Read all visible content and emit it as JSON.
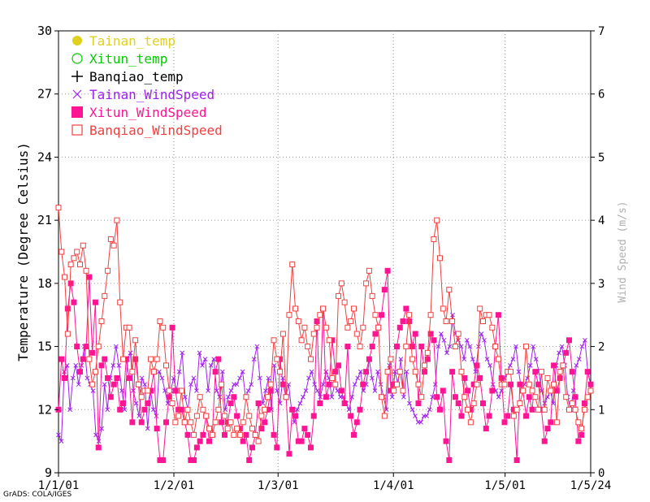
{
  "chart_data": {
    "type": "line",
    "ylabel_left": "Temperature (Degree Celsius)",
    "ylabel_right": "Wind Speed (m/s)",
    "ylim_left": [
      9,
      30
    ],
    "ylim_right": [
      0,
      7
    ],
    "yticks_left": [
      "9",
      "12",
      "15",
      "18",
      "21",
      "24",
      "27",
      "30"
    ],
    "yticks_right": [
      "0",
      "1",
      "2",
      "3",
      "4",
      "5",
      "6",
      "7"
    ],
    "xticks": [
      "1/1/01",
      "1/2/01",
      "1/3/01",
      "1/4/01",
      "1/5/01",
      "1/5/24"
    ],
    "xrange": [
      "2001-01-01",
      "2001-05-24"
    ],
    "legend_position": "top-left",
    "series": [
      {
        "name": "Tainan_temp",
        "color": "#e0d020",
        "marker": "filled-circle",
        "axis": "left",
        "values": []
      },
      {
        "name": "Xitun_temp",
        "color": "#00cc00",
        "marker": "open-circle",
        "axis": "left",
        "values": []
      },
      {
        "name": "Banqiao_temp",
        "color": "#000000",
        "marker": "plus",
        "axis": "left",
        "values": []
      },
      {
        "name": "Tainan_WindSpeed",
        "color": "#a020f0",
        "marker": "cross",
        "axis": "right",
        "values": [
          0.6,
          0.5,
          1.6,
          1.7,
          1.0,
          1.5,
          1.7,
          1.4,
          1.7,
          2.0,
          1.5,
          1.4,
          1.3,
          0.6,
          0.5,
          0.7,
          1.4,
          1.0,
          1.5,
          1.7,
          2.0,
          1.7,
          1.3,
          1.0,
          1.8,
          1.9,
          1.3,
          1.1,
          0.9,
          1.5,
          1.4,
          0.7,
          1.3,
          1.0,
          0.9,
          1.6,
          1.5,
          1.3,
          1.1,
          1.3,
          1.5,
          1.3,
          1.6,
          1.9,
          1.2,
          1.0,
          1.4,
          1.5,
          1.3,
          1.9,
          1.7,
          1.8,
          1.3,
          1.7,
          1.8,
          1.3,
          1.2,
          1.6,
          1.0,
          1.2,
          1.3,
          1.4,
          1.4,
          1.5,
          1.6,
          1.2,
          1.3,
          1.4,
          1.8,
          2.0,
          1.5,
          1.1,
          1.3,
          1.5,
          1.0,
          1.7,
          1.3,
          1.1,
          1.5,
          1.2,
          1.4,
          1.0,
          0.8,
          1.0,
          1.1,
          1.2,
          1.3,
          1.5,
          1.6,
          1.4,
          1.3,
          1.2,
          1.4,
          1.6,
          1.5,
          1.2,
          1.4,
          1.3,
          1.2,
          1.2,
          1.1,
          1.0,
          1.2,
          1.4,
          1.5,
          1.6,
          1.3,
          1.4,
          1.8,
          1.5,
          1.3,
          1.6,
          1.4,
          1.2,
          1.0,
          1.7,
          1.2,
          1.6,
          1.4,
          1.8,
          1.2,
          1.6,
          1.1,
          1.0,
          0.9,
          0.8,
          0.8,
          0.9,
          0.9,
          1.0,
          1.2,
          1.4,
          2.0,
          2.2,
          2.1,
          1.9,
          2.0,
          2.5,
          2.2,
          2.1,
          2.0,
          1.8,
          2.1,
          2.0,
          1.8,
          1.6,
          2.0,
          2.2,
          2.1,
          1.8,
          1.7,
          1.4,
          1.3,
          1.2,
          1.3,
          1.5,
          1.6,
          1.7,
          1.8,
          2.0,
          1.6,
          1.3,
          1.4,
          1.5,
          1.7,
          2.0,
          1.8,
          1.6,
          1.3,
          1.1,
          1.2,
          1.3,
          1.1,
          1.7,
          1.9,
          2.0,
          1.7,
          1.2,
          1.0,
          1.3,
          1.7,
          1.8,
          2.0,
          2.1,
          1.6,
          1.4
        ]
      },
      {
        "name": "Xitun_WindSpeed",
        "color": "#ff1493",
        "marker": "filled-square",
        "axis": "right",
        "values": [
          1.0,
          1.8,
          1.5,
          2.6,
          3.0,
          2.7,
          2.0,
          1.6,
          1.8,
          2.0,
          3.1,
          1.9,
          2.7,
          0.4,
          1.7,
          1.8,
          1.5,
          1.2,
          1.4,
          1.5,
          1.0,
          1.1,
          1.8,
          1.5,
          0.8,
          1.8,
          1.4,
          0.8,
          1.0,
          1.1,
          1.3,
          1.6,
          0.7,
          0.2,
          0.2,
          0.8,
          1.2,
          2.3,
          1.3,
          1.0,
          1.0,
          0.8,
          0.6,
          0.2,
          0.2,
          0.4,
          0.5,
          0.6,
          0.9,
          0.5,
          0.6,
          1.6,
          1.8,
          0.8,
          0.6,
          0.8,
          1.1,
          1.2,
          0.9,
          0.7,
          0.5,
          0.6,
          0.2,
          0.4,
          0.6,
          1.1,
          0.7,
          0.8,
          1.0,
          1.3,
          0.6,
          0.4,
          1.8,
          1.4,
          1.2,
          0.3,
          1.0,
          0.9,
          0.5,
          0.5,
          0.7,
          0.6,
          0.4,
          0.9,
          2.4,
          1.1,
          2.6,
          1.2,
          1.4,
          2.1,
          1.6,
          1.7,
          1.3,
          1.1,
          2.0,
          0.9,
          0.6,
          0.8,
          1.0,
          1.4,
          1.6,
          1.8,
          2.0,
          2.2,
          2.3,
          2.5,
          2.9,
          3.2,
          1.3,
          1.4,
          2.0,
          2.3,
          2.4,
          2.6,
          2.4,
          2.0,
          2.2,
          1.1,
          2.0,
          1.6,
          1.8,
          2.2,
          2.1,
          1.2,
          1.0,
          1.3,
          0.5,
          0.2,
          1.6,
          1.2,
          1.1,
          0.9,
          1.5,
          1.3,
          1.0,
          1.4,
          1.7,
          1.5,
          1.1,
          0.7,
          0.9,
          1.3,
          2.0,
          2.5,
          1.5,
          0.8,
          0.9,
          1.4,
          1.0,
          0.2,
          1.4,
          1.3,
          0.9,
          1.2,
          1.0,
          1.6,
          1.4,
          1.0,
          0.5,
          0.7,
          0.8,
          1.7,
          1.3,
          1.5,
          1.7,
          1.9,
          2.1,
          1.6,
          1.2,
          0.5,
          0.6,
          1.1,
          1.6,
          1.4
        ]
      },
      {
        "name": "Banqiao_WindSpeed",
        "color": "#f04040",
        "marker": "open-square",
        "axis": "right",
        "values": [
          4.2,
          3.5,
          3.1,
          2.2,
          3.3,
          3.4,
          3.5,
          3.3,
          3.6,
          3.2,
          1.8,
          1.4,
          1.6,
          2.0,
          2.4,
          2.8,
          3.2,
          3.7,
          3.6,
          4.0,
          2.7,
          1.8,
          2.3,
          2.3,
          1.6,
          2.1,
          1.4,
          1.2,
          1.3,
          1.3,
          1.8,
          1.6,
          1.8,
          2.4,
          2.3,
          1.7,
          1.3,
          1.1,
          0.8,
          0.9,
          1.3,
          0.8,
          1.0,
          0.8,
          0.6,
          0.9,
          1.2,
          1.0,
          0.9,
          0.7,
          0.6,
          0.8,
          1.0,
          1.4,
          0.9,
          0.7,
          0.8,
          0.6,
          0.7,
          0.6,
          0.8,
          1.2,
          0.9,
          0.7,
          0.6,
          0.5,
          0.9,
          1.0,
          1.2,
          1.4,
          2.1,
          1.8,
          1.6,
          2.2,
          1.2,
          2.5,
          3.3,
          2.6,
          2.4,
          2.1,
          2.3,
          2.0,
          1.8,
          2.2,
          2.3,
          2.5,
          2.6,
          2.3,
          2.1,
          1.5,
          1.4,
          2.8,
          3.0,
          2.7,
          2.3,
          2.4,
          2.6,
          2.2,
          2.0,
          2.3,
          3.0,
          3.2,
          2.8,
          2.5,
          2.3,
          1.2,
          0.9,
          1.6,
          1.8,
          1.3,
          1.4,
          1.6,
          1.3,
          2.0,
          2.5,
          1.8,
          1.6,
          1.4,
          1.2,
          1.7,
          1.9,
          2.5,
          3.7,
          4.0,
          3.4,
          2.6,
          2.4,
          2.9,
          2.4,
          2.0,
          2.2,
          1.6,
          1.2,
          1.0,
          0.8,
          1.1,
          1.4,
          2.6,
          2.4,
          2.5,
          2.5,
          2.3,
          2.0,
          1.8,
          1.4,
          1.4,
          1.6,
          1.6,
          0.9,
          1.0,
          1.1,
          1.3,
          2.0,
          1.4,
          1.3,
          1.2,
          1.0,
          1.6,
          1.0,
          1.5,
          1.3,
          1.4,
          0.8,
          1.6,
          1.7,
          1.2,
          1.0,
          1.1,
          1.0,
          0.8,
          0.7,
          1.0,
          1.2,
          1.3
        ]
      },
      {
        "name": "",
        "color": "#000000",
        "marker": "none",
        "axis": "right",
        "values": []
      }
    ]
  },
  "footer": {
    "credit": "GrADS: COLA/IGES"
  }
}
